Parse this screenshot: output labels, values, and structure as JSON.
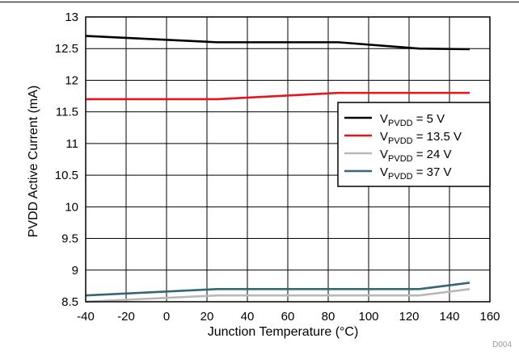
{
  "chart_data": {
    "type": "line",
    "title": "",
    "xlabel": "Junction Temperature (°C)",
    "ylabel": "PVDD Active Current (mA)",
    "xlim": [
      -40,
      160
    ],
    "ylim": [
      8.5,
      13
    ],
    "x_ticks": [
      -40,
      -20,
      0,
      20,
      40,
      60,
      80,
      100,
      120,
      140,
      160
    ],
    "y_ticks": [
      8.5,
      9,
      9.5,
      10,
      10.5,
      11,
      11.5,
      12,
      12.5,
      13
    ],
    "x_tick_labels": [
      "-40",
      "-20",
      "0",
      "20",
      "40",
      "60",
      "80",
      "100",
      "120",
      "140",
      "160"
    ],
    "y_tick_labels": [
      "8.5",
      "9",
      "9.5",
      "10",
      "10.5",
      "11",
      "11.5",
      "12",
      "12.5",
      "13"
    ],
    "grid": true,
    "legend_position": "right",
    "series": [
      {
        "name": "V_PVDD = 5 V",
        "legend_main": "V",
        "legend_sub": "PVDD",
        "legend_value": " = 5 V",
        "color": "#000000",
        "x": [
          -40,
          25,
          85,
          125,
          150
        ],
        "y": [
          12.7,
          12.6,
          12.6,
          12.5,
          12.49
        ]
      },
      {
        "name": "V_PVDD = 13.5 V",
        "legend_main": "V",
        "legend_sub": "PVDD",
        "legend_value": " = 13.5 V",
        "color": "#e8141c",
        "x": [
          -40,
          25,
          85,
          125,
          150
        ],
        "y": [
          11.7,
          11.7,
          11.8,
          11.8,
          11.8
        ]
      },
      {
        "name": "V_PVDD = 24 V",
        "legend_main": "V",
        "legend_sub": "PVDD",
        "legend_value": " = 24 V",
        "color": "#b8b8b8",
        "x": [
          -40,
          25,
          85,
          125,
          150
        ],
        "y": [
          8.5,
          8.6,
          8.6,
          8.6,
          8.7
        ]
      },
      {
        "name": "V_PVDD = 37 V",
        "legend_main": "V",
        "legend_sub": "PVDD",
        "legend_value": " = 37 V",
        "color": "#336677",
        "x": [
          -40,
          25,
          85,
          125,
          150
        ],
        "y": [
          8.6,
          8.7,
          8.7,
          8.7,
          8.8
        ]
      }
    ]
  },
  "figure_code": "D004"
}
